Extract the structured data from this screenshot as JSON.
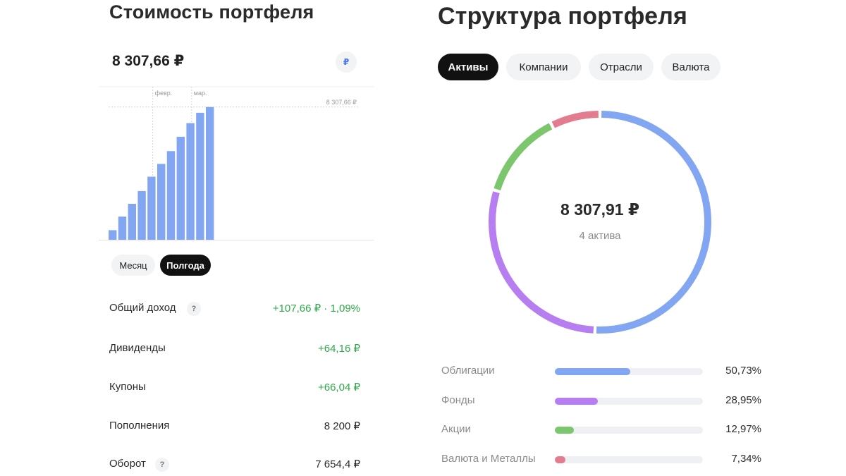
{
  "portfolio_value": {
    "title": "Стоимость портфеля",
    "amount": "8 307,66 ₽",
    "currency_symbol": "₽"
  },
  "chart_data": {
    "type": "bar",
    "values": [
      600,
      1450,
      2250,
      3050,
      3950,
      4750,
      5550,
      6450,
      7300,
      7950,
      8307.66
    ],
    "month_labels": [
      {
        "label": "февр.",
        "index": 4.5
      },
      {
        "label": "мар.",
        "index": 8.5
      }
    ],
    "reference_line": {
      "value": 8307.66,
      "label": "8 307,66 ₽"
    },
    "ylim": [
      0,
      9800
    ],
    "grid": false,
    "color": "#82a6f2"
  },
  "periods": {
    "month": "Месяц",
    "half_year": "Полгода",
    "selected": "half_year"
  },
  "stats": [
    {
      "label": "Общий доход",
      "value": "+107,66 ₽ · 1,09%",
      "positive": true,
      "help": "?"
    },
    {
      "label": "Дивиденды",
      "value": "+64,16 ₽",
      "positive": true
    },
    {
      "label": "Купоны",
      "value": "+66,04 ₽",
      "positive": true
    },
    {
      "label": "Пополнения",
      "value": "8 200 ₽",
      "positive": false
    },
    {
      "label": "Оборот",
      "value": "7 654,4 ₽",
      "positive": false,
      "help": "?"
    }
  ],
  "structure": {
    "title": "Структура портфеля",
    "tabs": [
      {
        "label": "Активы",
        "active": true
      },
      {
        "label": "Компании",
        "active": false
      },
      {
        "label": "Отрасли",
        "active": false
      },
      {
        "label": "Валюта",
        "active": false
      }
    ],
    "total": "8 307,91 ₽",
    "count_label": "4 актива",
    "allocation": [
      {
        "label": "Облигации",
        "percent": 50.73,
        "percent_text": "50,73%",
        "color": "#82a6f2"
      },
      {
        "label": "Фонды",
        "percent": 28.95,
        "percent_text": "28,95%",
        "color": "#b67ef0"
      },
      {
        "label": "Акции",
        "percent": 12.97,
        "percent_text": "12,97%",
        "color": "#7cc66e"
      },
      {
        "label": "Валюта и Металлы",
        "percent": 7.34,
        "percent_text": "7,34%",
        "color": "#e37c8e"
      }
    ]
  }
}
